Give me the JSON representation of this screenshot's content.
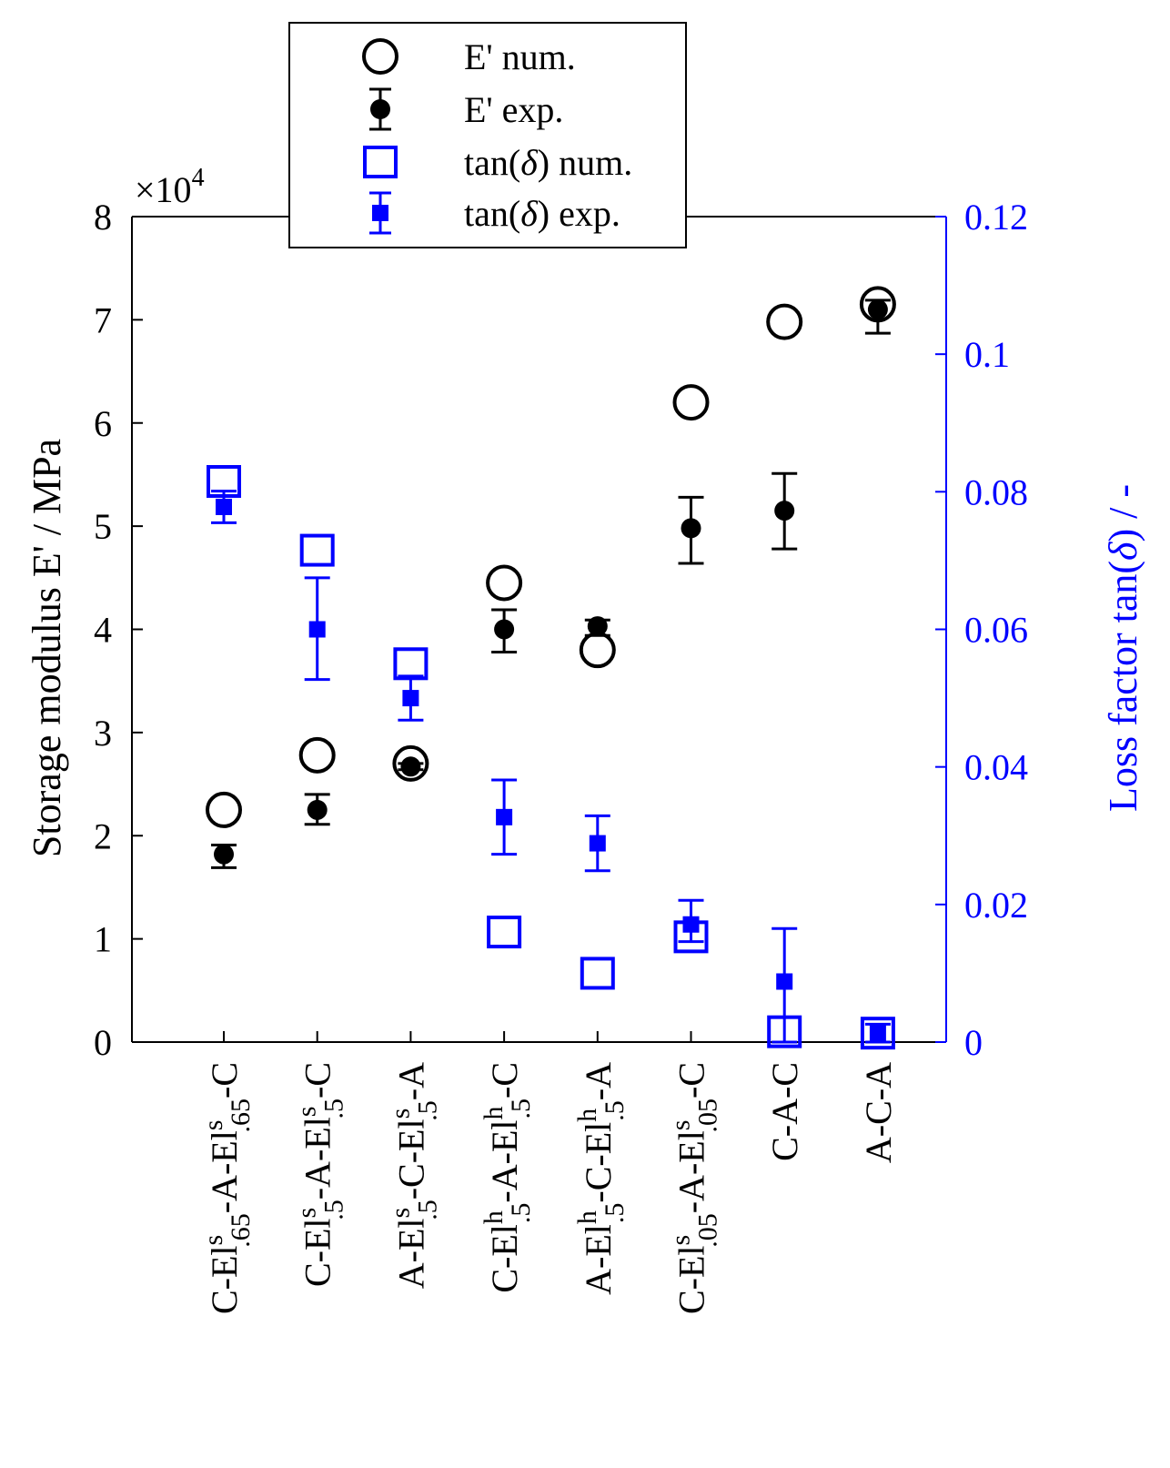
{
  "chart_data": {
    "type": "scatter",
    "categories": [
      {
        "base": "C-El",
        "sup1": "s",
        "sub1": ".65",
        "mid": "-A-El",
        "sup2": "s",
        "sub2": ".65",
        "tail": "-C"
      },
      {
        "base": "C-El",
        "sup1": "s",
        "sub1": ".5",
        "mid": "-A-El",
        "sup2": "s",
        "sub2": ".5",
        "tail": "-C"
      },
      {
        "base": "A-El",
        "sup1": "s",
        "sub1": ".5",
        "mid": "-C-El",
        "sup2": "s",
        "sub2": ".5",
        "tail": "-A"
      },
      {
        "base": "C-El",
        "sup1": "h",
        "sub1": ".5",
        "mid": "-A-El",
        "sup2": "h",
        "sub2": ".5",
        "tail": "-C"
      },
      {
        "base": "A-El",
        "sup1": "h",
        "sub1": ".5",
        "mid": "-C-El",
        "sup2": "h",
        "sub2": ".5",
        "tail": "-A"
      },
      {
        "base": "C-El",
        "sup1": "s",
        "sub1": ".05",
        "mid": "-A-El",
        "sup2": "s",
        "sub2": ".05",
        "tail": "-C"
      },
      {
        "base": "C-A-C"
      },
      {
        "base": "A-C-A"
      }
    ],
    "series": [
      {
        "name": "E' num.",
        "axis": "left",
        "values": [
          22500,
          27800,
          27000,
          44500,
          38000,
          62000,
          69800,
          71500
        ]
      },
      {
        "name": "E' exp.",
        "axis": "left",
        "values": [
          18200,
          22500,
          26700,
          40000,
          40300,
          49800,
          51500,
          71000
        ],
        "err_low": [
          1300,
          1400,
          300,
          2200,
          900,
          3400,
          3700,
          2300
        ],
        "err_high": [
          900,
          1500,
          300,
          1900,
          600,
          3000,
          3600,
          900
        ]
      },
      {
        "name": "tan(δ) num.",
        "axis": "right",
        "values": [
          0.0815,
          0.0715,
          0.055,
          0.016,
          0.01,
          0.0153,
          0.0015,
          0.0013
        ]
      },
      {
        "name": "tan(δ) exp.",
        "axis": "right",
        "values": [
          0.0778,
          0.06,
          0.05,
          0.0327,
          0.0289,
          0.0171,
          0.0088,
          0.0013
        ],
        "err_low": [
          0.0023,
          0.0073,
          0.0032,
          0.0054,
          0.004,
          0.0025,
          0.0088,
          0.0013
        ],
        "err_high": [
          0.0023,
          0.0075,
          0.0032,
          0.0054,
          0.004,
          0.0035,
          0.0077,
          0.0013
        ]
      }
    ],
    "ylabel": "Storage modulus E' / MPa",
    "ylim": [
      0,
      80000
    ],
    "yticks": [
      "0",
      "1",
      "2",
      "3",
      "4",
      "5",
      "6",
      "7",
      "8"
    ],
    "y_multiplier": {
      "base": "×10",
      "exp": "4"
    },
    "y2label_text": "Loss factor tan(",
    "y2label_delta": "δ",
    "y2label_end": ") / -",
    "y2lim": [
      0,
      0.12
    ],
    "y2ticks": [
      "0",
      "0.02",
      "0.04",
      "0.06",
      "0.08",
      "0.1",
      "0.12"
    ],
    "legend": {
      "position": "top-center",
      "entries": [
        {
          "label": "E' num."
        },
        {
          "label": "E' exp."
        },
        {
          "pre": "tan(",
          "delta": "δ",
          "post": ") num."
        },
        {
          "pre": "tan(",
          "delta": "δ",
          "post": ") exp."
        }
      ]
    },
    "colors": {
      "primary": "#000000",
      "secondary": "#0000ff"
    }
  }
}
